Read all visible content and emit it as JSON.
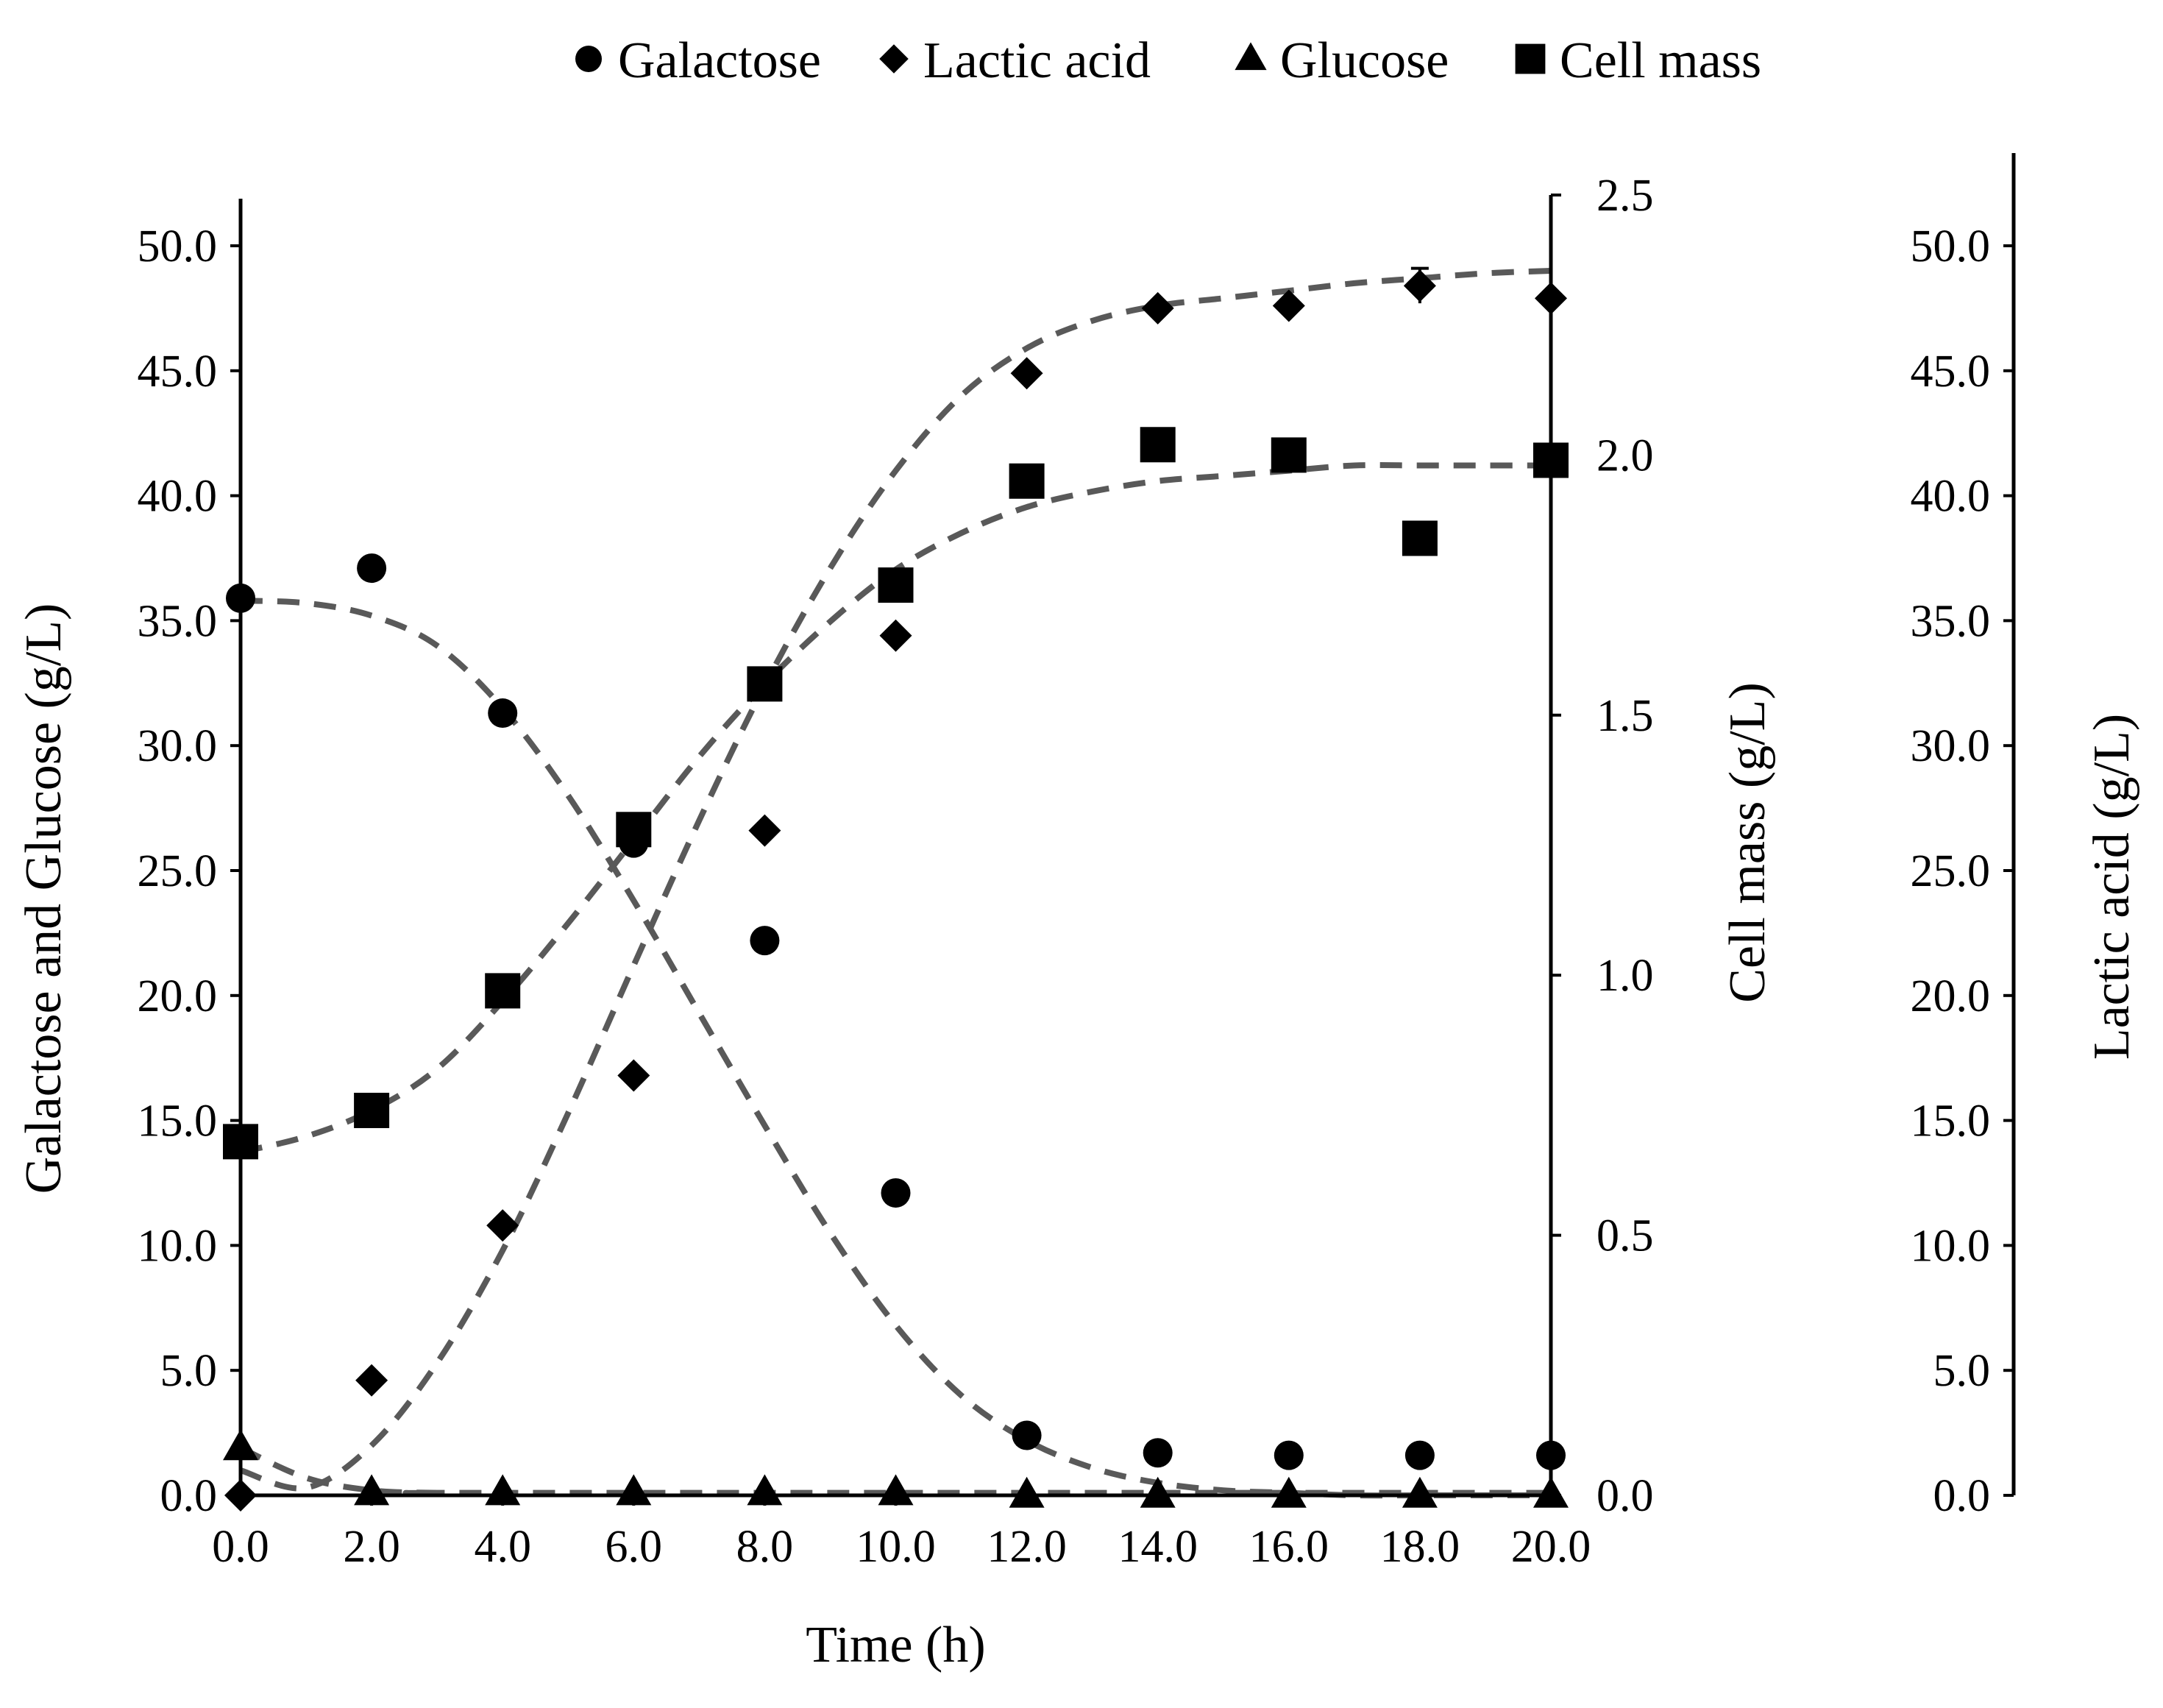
{
  "chart_data": {
    "type": "scatter",
    "x_axis": {
      "label": "Time (h)",
      "range": [
        0,
        20
      ],
      "ticks": [
        "0.0",
        "2.0",
        "4.0",
        "6.0",
        "8.0",
        "10.0",
        "12.0",
        "14.0",
        "16.0",
        "18.0",
        "20.0"
      ]
    },
    "y_left": {
      "label": "Galactose and Glucose (g/L)",
      "range": [
        0,
        50
      ],
      "ticks": [
        "0.0",
        "5.0",
        "10.0",
        "15.0",
        "20.0",
        "25.0",
        "30.0",
        "35.0",
        "40.0",
        "45.0",
        "50.0"
      ]
    },
    "y_mid": {
      "label": "Cell mass (g/L)",
      "range": [
        0,
        2.5
      ],
      "ticks": [
        "0.0",
        "0.5",
        "1.0",
        "1.5",
        "2.0",
        "2.5"
      ]
    },
    "y_right": {
      "label": "Lactic acid (g/L)",
      "range": [
        0,
        50
      ],
      "ticks": [
        "0.0",
        "5.0",
        "10.0",
        "15.0",
        "20.0",
        "25.0",
        "30.0",
        "35.0",
        "40.0",
        "45.0",
        "50.0"
      ]
    },
    "legend": {
      "position": "top",
      "items": [
        {
          "name": "Galactose",
          "marker": "circle"
        },
        {
          "name": "Lactic acid",
          "marker": "diamond"
        },
        {
          "name": "Glucose",
          "marker": "triangle"
        },
        {
          "name": "Cell mass",
          "marker": "square"
        }
      ]
    },
    "series": [
      {
        "name": "Galactose",
        "marker": "circle",
        "axis": "left",
        "x": [
          0,
          2,
          4,
          6,
          8,
          10,
          12,
          14,
          16,
          18,
          20
        ],
        "y": [
          35.9,
          37.1,
          31.3,
          26.1,
          22.2,
          12.1,
          2.4,
          1.7,
          1.6,
          1.6,
          1.6
        ]
      },
      {
        "name": "Lactic acid",
        "marker": "diamond",
        "axis": "right",
        "x": [
          0,
          2,
          4,
          6,
          8,
          10,
          12,
          14,
          16,
          18,
          20
        ],
        "y": [
          0.0,
          4.6,
          10.8,
          16.8,
          26.6,
          34.4,
          44.9,
          47.5,
          47.6,
          48.4,
          47.9
        ],
        "error": [
          0,
          0,
          0,
          0,
          0,
          0,
          0,
          0,
          0,
          0.7,
          0
        ]
      },
      {
        "name": "Glucose",
        "marker": "triangle",
        "axis": "left",
        "x": [
          0,
          2,
          4,
          6,
          8,
          10,
          12,
          14,
          16,
          18,
          20
        ],
        "y": [
          1.9,
          0.1,
          0.1,
          0.1,
          0.1,
          0.1,
          0.0,
          0.0,
          0.0,
          0.0,
          0.0
        ]
      },
      {
        "name": "Cell mass",
        "marker": "square",
        "axis": "mid",
        "x": [
          0,
          2,
          4,
          6,
          8,
          10,
          12,
          14,
          16,
          18,
          20
        ],
        "y": [
          0.68,
          0.74,
          0.97,
          1.28,
          1.56,
          1.75,
          1.95,
          2.02,
          2.0,
          1.84,
          1.99
        ]
      }
    ],
    "fit_curves": [
      {
        "name": "Galactose fit",
        "axis": "left",
        "style": "dashed",
        "x": [
          0,
          1,
          2,
          3,
          4,
          5,
          6,
          7,
          8,
          9,
          10,
          11,
          12,
          13,
          14,
          15,
          16,
          17,
          18,
          19,
          20
        ],
        "y": [
          35.8,
          35.7,
          35.2,
          34.0,
          31.5,
          28.0,
          23.8,
          19.3,
          14.8,
          10.5,
          6.8,
          4.0,
          2.2,
          1.1,
          0.5,
          0.2,
          0.1,
          0.0,
          0.0,
          0.0,
          0.0
        ]
      },
      {
        "name": "Lactic acid fit",
        "axis": "right",
        "style": "dashed",
        "x": [
          0,
          1,
          2,
          3,
          4,
          5,
          6,
          7,
          8,
          9,
          10,
          11,
          12,
          13,
          14,
          15,
          16,
          17,
          18,
          19,
          20
        ],
        "y": [
          1.0,
          0.3,
          2.0,
          5.3,
          9.8,
          15.3,
          21.2,
          27.0,
          32.4,
          37.1,
          41.0,
          44.0,
          45.9,
          47.0,
          47.6,
          47.9,
          48.2,
          48.5,
          48.7,
          48.9,
          49.0
        ]
      },
      {
        "name": "Glucose fit",
        "axis": "left",
        "style": "dashed",
        "x": [
          0,
          1,
          2,
          3,
          4,
          20
        ],
        "y": [
          1.9,
          0.7,
          0.2,
          0.1,
          0.1,
          0.1
        ]
      },
      {
        "name": "Cell mass fit",
        "axis": "mid",
        "style": "dashed",
        "x": [
          0,
          1,
          2,
          3,
          4,
          5,
          6,
          7,
          8,
          9,
          10,
          11,
          12,
          13,
          14,
          15,
          16,
          17,
          18,
          19,
          20
        ],
        "y": [
          0.66,
          0.69,
          0.74,
          0.82,
          0.95,
          1.1,
          1.26,
          1.42,
          1.56,
          1.68,
          1.78,
          1.85,
          1.9,
          1.93,
          1.95,
          1.96,
          1.97,
          1.98,
          1.98,
          1.98,
          1.98
        ]
      }
    ]
  }
}
